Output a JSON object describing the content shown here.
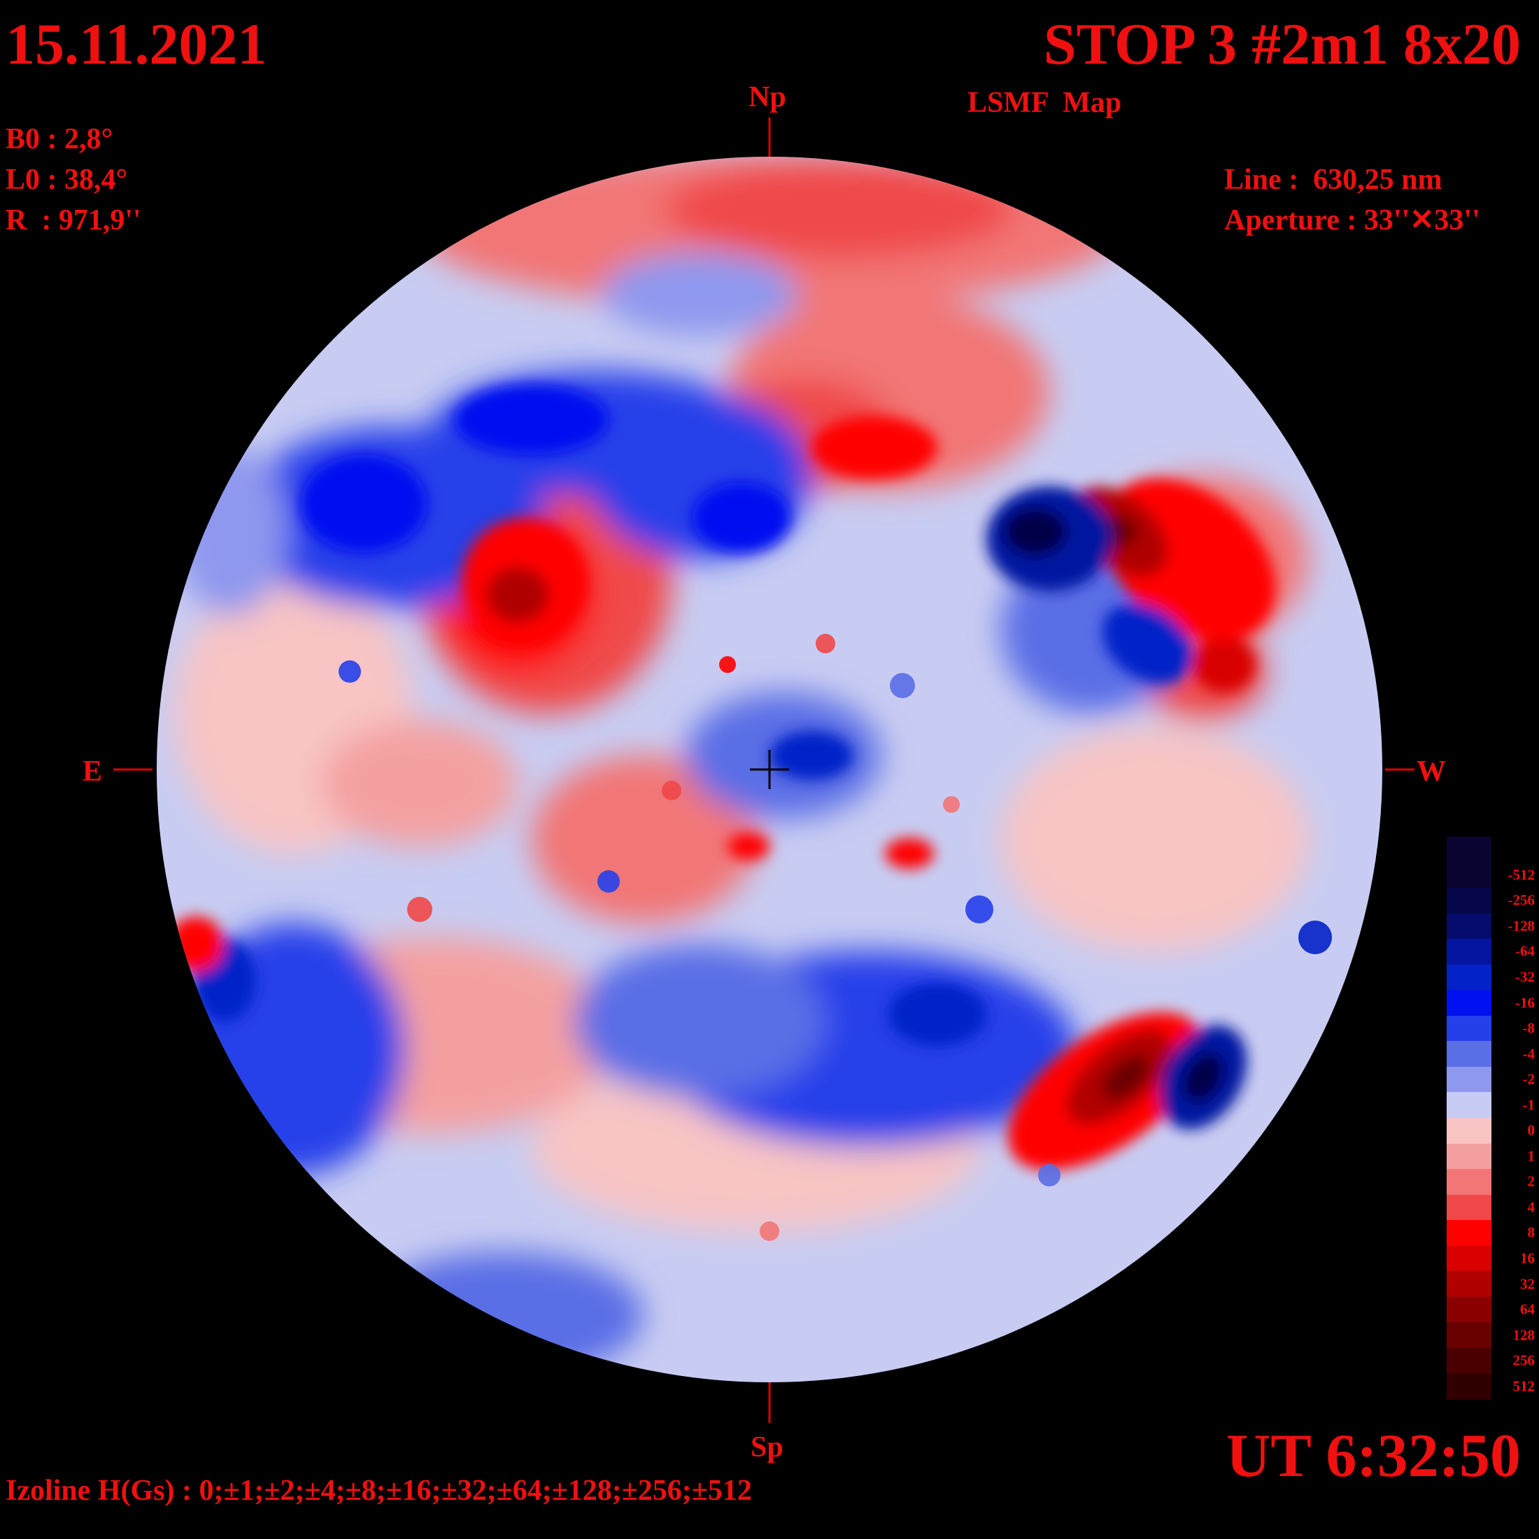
{
  "header": {
    "date": "15.11.2021",
    "title": "STOP 3 #2m1 8x20",
    "subtitle": "LSMF  Map"
  },
  "params": {
    "b0": "B0 : 2,8°",
    "l0": "L0 : 38,4°",
    "r": "R  : 971,9''"
  },
  "instrument": {
    "line": "Line :  630,25 nm",
    "aperture": "Aperture : 33''✕33''"
  },
  "directions": {
    "north": "Np",
    "south": "Sp",
    "east": "E",
    "west": "W"
  },
  "time": "UT 6:32:50",
  "izoline": "Izoline H(Gs) : 0;±1;±2;±4;±8;±16;±32;±64;±128;±256;±512",
  "legend": {
    "levels": [
      {
        "label": "-512",
        "color": "#0a0530"
      },
      {
        "label": "-256",
        "color": "#06064a"
      },
      {
        "label": "-128",
        "color": "#050c6e"
      },
      {
        "label": "-64",
        "color": "#0515a0"
      },
      {
        "label": "-32",
        "color": "#0322c8"
      },
      {
        "label": "-16",
        "color": "#0010f0"
      },
      {
        "label": "-8",
        "color": "#2540ea"
      },
      {
        "label": "-4",
        "color": "#5a6ee6"
      },
      {
        "label": "-2",
        "color": "#8e98ee"
      },
      {
        "label": "-1",
        "color": "#c6ccf4"
      },
      {
        "label": "0",
        "color": "#f8c4c4"
      },
      {
        "label": "1",
        "color": "#f4a0a0"
      },
      {
        "label": "2",
        "color": "#f27676"
      },
      {
        "label": "4",
        "color": "#f04848"
      },
      {
        "label": "8",
        "color": "#ff0000"
      },
      {
        "label": "16",
        "color": "#d80000"
      },
      {
        "label": "32",
        "color": "#b00000"
      },
      {
        "label": "64",
        "color": "#8a0000"
      },
      {
        "label": "128",
        "color": "#680000"
      },
      {
        "label": "256",
        "color": "#4a0000"
      },
      {
        "label": "512",
        "color": "#300000"
      }
    ]
  },
  "map": {
    "disk_color": "#c8ccf2",
    "axis_color": "#e00000",
    "regions": [
      {
        "polarity": "positive",
        "strength": "strong",
        "location": "west-northwest near disk limb"
      },
      {
        "polarity": "negative",
        "strength": "strong",
        "location": "west-northwest near disk limb"
      },
      {
        "polarity": "positive",
        "strength": "strong",
        "location": "southwest"
      },
      {
        "polarity": "negative",
        "strength": "strong",
        "location": "southwest"
      },
      {
        "polarity": "positive",
        "strength": "moderate",
        "location": "northeast-center"
      },
      {
        "polarity": "negative",
        "strength": "moderate",
        "location": "northeast band"
      }
    ]
  }
}
